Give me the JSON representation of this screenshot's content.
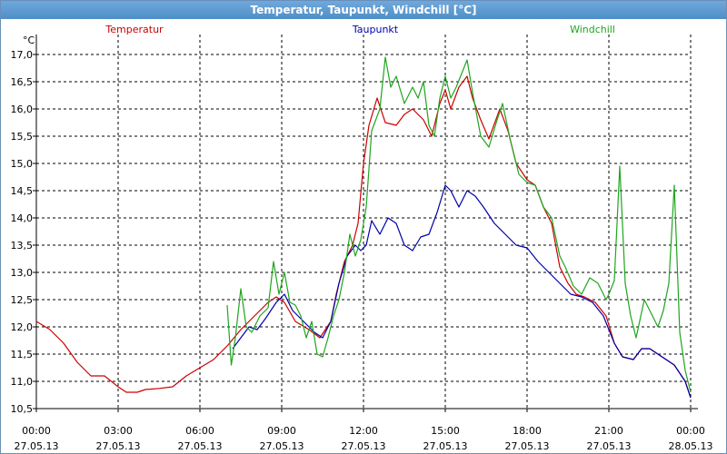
{
  "window": {
    "title": "Temperatur, Taupunkt, Windchill [°C]"
  },
  "chart_data": {
    "type": "line",
    "title": "Temperatur, Taupunkt, Windchill [°C]",
    "ylabel": "°C",
    "ylim": [
      10.5,
      17.0
    ],
    "yticks": [
      "17,0",
      "16,5",
      "16,0",
      "15,5",
      "15,0",
      "14,5",
      "14,0",
      "13,5",
      "13,0",
      "12,5",
      "12,0",
      "11,5",
      "11,0",
      "10,5"
    ],
    "xrange_hours": [
      0,
      24
    ],
    "xtick_times": [
      "00:00",
      "03:00",
      "06:00",
      "09:00",
      "12:00",
      "15:00",
      "18:00",
      "21:00",
      "00:00"
    ],
    "xtick_dates": [
      "27.05.13",
      "27.05.13",
      "27.05.13",
      "27.05.13",
      "27.05.13",
      "27.05.13",
      "27.05.13",
      "27.05.13",
      "28.05.13"
    ],
    "grid": true,
    "legend_position": "top",
    "series": [
      {
        "name": "Temperatur",
        "color": "#cc0000",
        "points": [
          [
            0,
            12.1
          ],
          [
            0.5,
            11.95
          ],
          [
            1,
            11.7
          ],
          [
            1.5,
            11.35
          ],
          [
            2,
            11.1
          ],
          [
            2.5,
            11.1
          ],
          [
            3,
            10.9
          ],
          [
            3.3,
            10.8
          ],
          [
            3.7,
            10.8
          ],
          [
            4,
            10.85
          ],
          [
            4.5,
            10.87
          ],
          [
            5,
            10.9
          ],
          [
            5.5,
            11.1
          ],
          [
            6,
            11.25
          ],
          [
            6.5,
            11.4
          ],
          [
            7,
            11.65
          ],
          [
            7.5,
            11.95
          ],
          [
            8,
            12.2
          ],
          [
            8.5,
            12.45
          ],
          [
            8.8,
            12.55
          ],
          [
            9.1,
            12.45
          ],
          [
            9.5,
            12.1
          ],
          [
            10,
            11.95
          ],
          [
            10.4,
            11.8
          ],
          [
            10.8,
            12.1
          ],
          [
            11,
            12.6
          ],
          [
            11.3,
            13.2
          ],
          [
            11.6,
            13.5
          ],
          [
            11.8,
            13.9
          ],
          [
            12,
            15.0
          ],
          [
            12.2,
            15.7
          ],
          [
            12.5,
            16.2
          ],
          [
            12.8,
            15.75
          ],
          [
            13.2,
            15.7
          ],
          [
            13.5,
            15.9
          ],
          [
            13.8,
            16.0
          ],
          [
            14.2,
            15.8
          ],
          [
            14.5,
            15.5
          ],
          [
            14.8,
            16.1
          ],
          [
            15,
            16.35
          ],
          [
            15.2,
            16.0
          ],
          [
            15.5,
            16.4
          ],
          [
            15.8,
            16.6
          ],
          [
            16,
            16.2
          ],
          [
            16.3,
            15.8
          ],
          [
            16.6,
            15.45
          ],
          [
            17,
            16.0
          ],
          [
            17.3,
            15.6
          ],
          [
            17.6,
            15.0
          ],
          [
            18,
            14.7
          ],
          [
            18.3,
            14.6
          ],
          [
            18.6,
            14.2
          ],
          [
            18.9,
            13.9
          ],
          [
            19.2,
            13.1
          ],
          [
            19.5,
            12.8
          ],
          [
            19.8,
            12.6
          ],
          [
            20.1,
            12.55
          ],
          [
            20.5,
            12.45
          ],
          [
            20.9,
            12.2
          ],
          [
            21.2,
            11.7
          ],
          [
            21.5,
            11.45
          ],
          [
            21.9,
            11.4
          ],
          [
            22.2,
            11.6
          ],
          [
            22.5,
            11.6
          ],
          [
            22.8,
            11.5
          ],
          [
            23.1,
            11.4
          ],
          [
            23.4,
            11.3
          ],
          [
            23.6,
            11.15
          ],
          [
            23.8,
            11.0
          ],
          [
            24,
            10.7
          ]
        ]
      },
      {
        "name": "Taupunkt",
        "color": "#0000aa",
        "points": [
          [
            7.2,
            11.6
          ],
          [
            7.5,
            11.8
          ],
          [
            7.8,
            12.0
          ],
          [
            8.1,
            11.95
          ],
          [
            8.4,
            12.15
          ],
          [
            8.8,
            12.45
          ],
          [
            9.1,
            12.6
          ],
          [
            9.4,
            12.3
          ],
          [
            9.8,
            12.1
          ],
          [
            10.2,
            11.9
          ],
          [
            10.5,
            11.8
          ],
          [
            10.8,
            12.1
          ],
          [
            11.1,
            12.8
          ],
          [
            11.4,
            13.3
          ],
          [
            11.7,
            13.5
          ],
          [
            11.9,
            13.4
          ],
          [
            12.1,
            13.5
          ],
          [
            12.3,
            13.95
          ],
          [
            12.6,
            13.7
          ],
          [
            12.9,
            14.0
          ],
          [
            13.2,
            13.9
          ],
          [
            13.5,
            13.5
          ],
          [
            13.8,
            13.4
          ],
          [
            14.1,
            13.65
          ],
          [
            14.4,
            13.7
          ],
          [
            14.7,
            14.1
          ],
          [
            15,
            14.6
          ],
          [
            15.2,
            14.5
          ],
          [
            15.5,
            14.2
          ],
          [
            15.8,
            14.5
          ],
          [
            16.1,
            14.4
          ],
          [
            16.4,
            14.2
          ],
          [
            16.8,
            13.9
          ],
          [
            17.2,
            13.7
          ],
          [
            17.6,
            13.5
          ],
          [
            18,
            13.45
          ],
          [
            18.4,
            13.2
          ],
          [
            18.8,
            13.0
          ],
          [
            19.2,
            12.8
          ],
          [
            19.6,
            12.6
          ],
          [
            20,
            12.55
          ],
          [
            20.4,
            12.45
          ],
          [
            20.8,
            12.2
          ],
          [
            21.2,
            11.7
          ],
          [
            21.5,
            11.45
          ],
          [
            21.9,
            11.4
          ],
          [
            22.2,
            11.6
          ],
          [
            22.5,
            11.6
          ],
          [
            22.8,
            11.5
          ],
          [
            23.1,
            11.4
          ],
          [
            23.4,
            11.3
          ],
          [
            23.6,
            11.15
          ],
          [
            23.8,
            11.0
          ],
          [
            24,
            10.7
          ]
        ]
      },
      {
        "name": "Windchill",
        "color": "#1fa51f",
        "points": [
          [
            7.0,
            12.4
          ],
          [
            7.15,
            11.3
          ],
          [
            7.3,
            11.8
          ],
          [
            7.5,
            12.7
          ],
          [
            7.7,
            12.0
          ],
          [
            7.9,
            11.9
          ],
          [
            8.2,
            12.2
          ],
          [
            8.5,
            12.35
          ],
          [
            8.7,
            13.2
          ],
          [
            8.9,
            12.6
          ],
          [
            9.1,
            13.0
          ],
          [
            9.3,
            12.45
          ],
          [
            9.5,
            12.4
          ],
          [
            9.7,
            12.2
          ],
          [
            9.9,
            11.8
          ],
          [
            10.1,
            12.1
          ],
          [
            10.3,
            11.5
          ],
          [
            10.5,
            11.45
          ],
          [
            10.7,
            11.8
          ],
          [
            10.9,
            12.2
          ],
          [
            11.1,
            12.5
          ],
          [
            11.3,
            13.0
          ],
          [
            11.5,
            13.7
          ],
          [
            11.7,
            13.3
          ],
          [
            11.9,
            13.6
          ],
          [
            12.1,
            14.2
          ],
          [
            12.3,
            15.6
          ],
          [
            12.6,
            16.0
          ],
          [
            12.8,
            16.95
          ],
          [
            13.0,
            16.4
          ],
          [
            13.2,
            16.6
          ],
          [
            13.5,
            16.1
          ],
          [
            13.8,
            16.4
          ],
          [
            14.0,
            16.2
          ],
          [
            14.2,
            16.5
          ],
          [
            14.4,
            15.7
          ],
          [
            14.6,
            15.5
          ],
          [
            14.8,
            16.2
          ],
          [
            15.0,
            16.6
          ],
          [
            15.2,
            16.2
          ],
          [
            15.4,
            16.4
          ],
          [
            15.6,
            16.65
          ],
          [
            15.8,
            16.9
          ],
          [
            16.0,
            16.3
          ],
          [
            16.3,
            15.5
          ],
          [
            16.6,
            15.3
          ],
          [
            16.9,
            15.8
          ],
          [
            17.1,
            16.1
          ],
          [
            17.4,
            15.4
          ],
          [
            17.7,
            14.8
          ],
          [
            18.0,
            14.65
          ],
          [
            18.3,
            14.6
          ],
          [
            18.6,
            14.2
          ],
          [
            18.9,
            14.0
          ],
          [
            19.2,
            13.3
          ],
          [
            19.4,
            13.1
          ],
          [
            19.7,
            12.75
          ],
          [
            20.0,
            12.6
          ],
          [
            20.3,
            12.9
          ],
          [
            20.6,
            12.8
          ],
          [
            20.9,
            12.5
          ],
          [
            21.0,
            12.6
          ],
          [
            21.2,
            12.85
          ],
          [
            21.4,
            14.95
          ],
          [
            21.6,
            12.8
          ],
          [
            21.8,
            12.2
          ],
          [
            22.0,
            11.8
          ],
          [
            22.3,
            12.5
          ],
          [
            22.5,
            12.3
          ],
          [
            22.8,
            12.0
          ],
          [
            23.0,
            12.3
          ],
          [
            23.2,
            12.8
          ],
          [
            23.4,
            14.6
          ],
          [
            23.6,
            11.9
          ],
          [
            23.8,
            11.2
          ],
          [
            24,
            10.8
          ]
        ]
      }
    ]
  }
}
